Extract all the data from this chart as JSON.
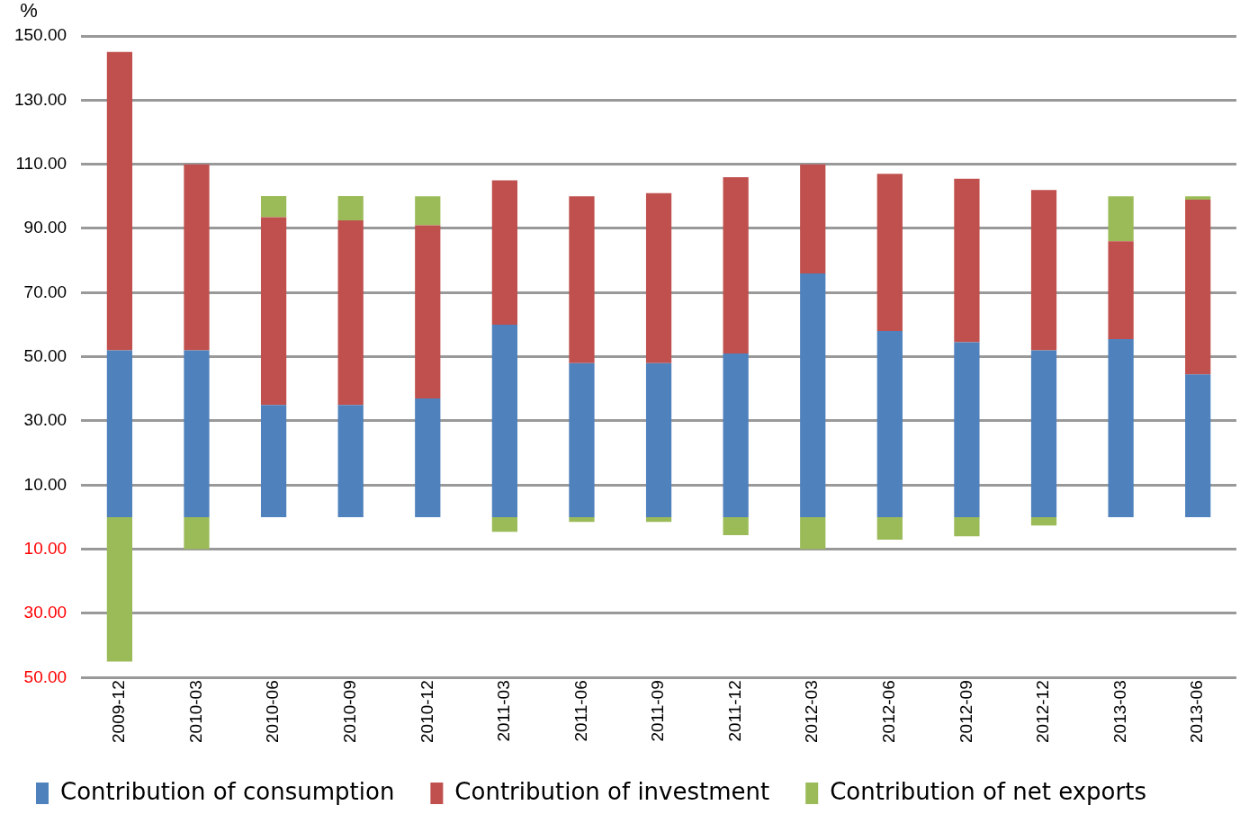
{
  "chart_data": {
    "type": "bar",
    "ylabel": "%",
    "stacked": true,
    "grid": "y",
    "legend": "bottom",
    "categories": [
      "2009-12",
      "2010-03",
      "2010-06",
      "2010-09",
      "2010-12",
      "2011-03",
      "2011-06",
      "2011-09",
      "2011-12",
      "2012-03",
      "2012-06",
      "2012-09",
      "2012-12",
      "2013-03",
      "2013-06"
    ],
    "series": [
      {
        "name": "Contribution of consumption",
        "color": "#4f81bd",
        "values": [
          52,
          52,
          35,
          35,
          37,
          60,
          48,
          48,
          51,
          76,
          58,
          54.5,
          52,
          55.5,
          44.5
        ]
      },
      {
        "name": "Contribution of investment",
        "color": "#c0504d",
        "values": [
          93,
          58,
          58.5,
          57.5,
          54,
          45,
          52,
          53,
          55,
          34,
          49,
          51,
          50,
          30.5,
          54.5
        ]
      },
      {
        "name": "Contribution of net exports",
        "color": "#9bbb59",
        "values": [
          -45,
          -10,
          6.6,
          7.6,
          9,
          -4.6,
          -1.5,
          -1.5,
          -5.6,
          -10,
          -7,
          -6,
          -2.6,
          14,
          1
        ]
      }
    ],
    "ylim": [
      -50,
      150
    ],
    "yticks": [
      {
        "value": -50,
        "label": "50.00"
      },
      {
        "value": -30,
        "label": "30.00"
      },
      {
        "value": -10,
        "label": "10.00"
      },
      {
        "value": 10,
        "label": "10.00"
      },
      {
        "value": 30,
        "label": "30.00"
      },
      {
        "value": 50,
        "label": "50.00"
      },
      {
        "value": 70,
        "label": "70.00"
      },
      {
        "value": 90,
        "label": "90.00"
      },
      {
        "value": 110,
        "label": "110.00"
      },
      {
        "value": 130,
        "label": "130.00"
      },
      {
        "value": 150,
        "label": "150.00"
      }
    ]
  }
}
